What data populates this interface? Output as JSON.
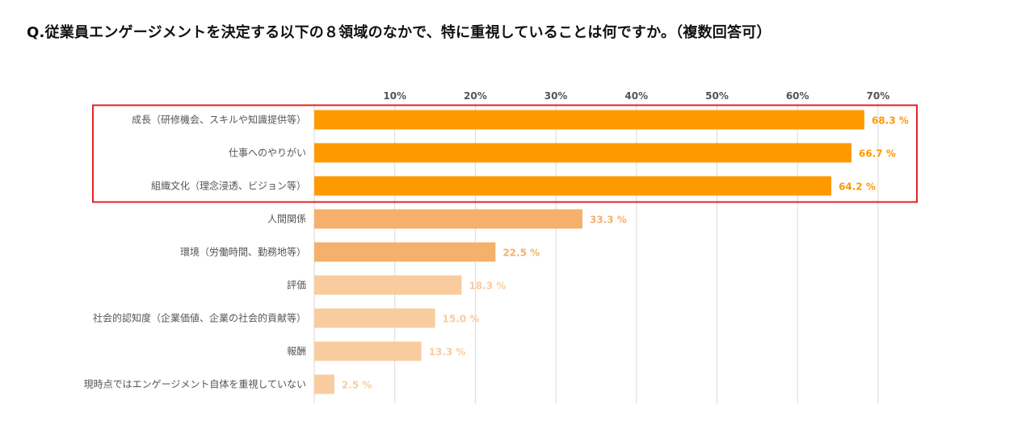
{
  "question": "Q.従業員エンゲージメントを決定する以下の８領域のなかで、特に重視していることは何ですか。（複数回答可）",
  "chart_data": {
    "type": "bar",
    "orientation": "horizontal",
    "title": "Q.従業員エンゲージメントを決定する以下の８領域のなかで、特に重視していることは何ですか。（複数回答可）",
    "categories": [
      "成長（研修機会、スキルや知識提供等）",
      "仕事へのやりがい",
      "組織文化（理念浸透、ビジョン等）",
      "人間関係",
      "環境（労働時間、勤務地等）",
      "評価",
      "社会的認知度（企業価値、企業の社会的貢献等）",
      "報酬",
      "現時点ではエンゲージメント自体を重視していない"
    ],
    "values": [
      68.3,
      66.7,
      64.2,
      33.3,
      22.5,
      18.3,
      15.0,
      13.3,
      2.5
    ],
    "value_labels": [
      "68.3 %",
      "66.7 %",
      "64.2 %",
      "33.3 %",
      "22.5 %",
      "18.3 %",
      "15.0 %",
      "13.3 %",
      "2.5 %"
    ],
    "xlim": [
      0,
      70
    ],
    "ticks": [
      10,
      20,
      30,
      40,
      50,
      60,
      70
    ],
    "tick_labels": [
      "10%",
      "20%",
      "30%",
      "40%",
      "50%",
      "60%",
      "70%"
    ],
    "xaxis_position": "top",
    "grid": true,
    "highlight": {
      "categories": [
        0,
        1,
        2
      ],
      "outline_color": "#e02424"
    },
    "bar_colors": [
      "#ff9900",
      "#ff9900",
      "#ff9900",
      "#f5b06b",
      "#f5b06b",
      "#f8cc9f",
      "#f8cc9f",
      "#f8cc9f",
      "#f8cc9f"
    ],
    "value_label_colors": [
      "#ff9900",
      "#ff9900",
      "#ff9900",
      "#f5b06b",
      "#f5b06b",
      "#f8cc9f",
      "#f8cc9f",
      "#f8cc9f",
      "#f8cc9f"
    ]
  }
}
